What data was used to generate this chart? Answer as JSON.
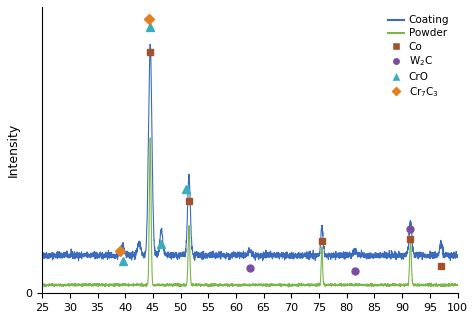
{
  "title": "",
  "xlabel": "",
  "ylabel": "Intensity",
  "xlim": [
    25,
    100
  ],
  "ylim": [
    0,
    1.15
  ],
  "coating_color": "#3a6bbf",
  "powder_color": "#7ab648",
  "co_color": "#a0522d",
  "w2c_color": "#7b4fa0",
  "cro_color": "#3aadbd",
  "cr7c3_color": "#e08020",
  "xticks": [
    25,
    30,
    35,
    40,
    45,
    50,
    55,
    60,
    65,
    70,
    75,
    80,
    85,
    90,
    95,
    100
  ],
  "markers": {
    "Co": {
      "positions": [
        44.5,
        51.5,
        75.5,
        91.5,
        97.0
      ],
      "color": "#a0522d",
      "marker": "s"
    },
    "W2C": {
      "positions": [
        62.5,
        81.5,
        91.5
      ],
      "color": "#7b4fa0",
      "marker": "o"
    },
    "CrO": {
      "positions": [
        39.5,
        46.5,
        51.0,
        44.5
      ],
      "color": "#3aadbd",
      "marker": "^"
    },
    "Cr7C3": {
      "positions": [
        39.0,
        44.3
      ],
      "color": "#e08020",
      "marker": "D"
    }
  },
  "coating_baseline": 0.18,
  "powder_baseline": 0.04
}
